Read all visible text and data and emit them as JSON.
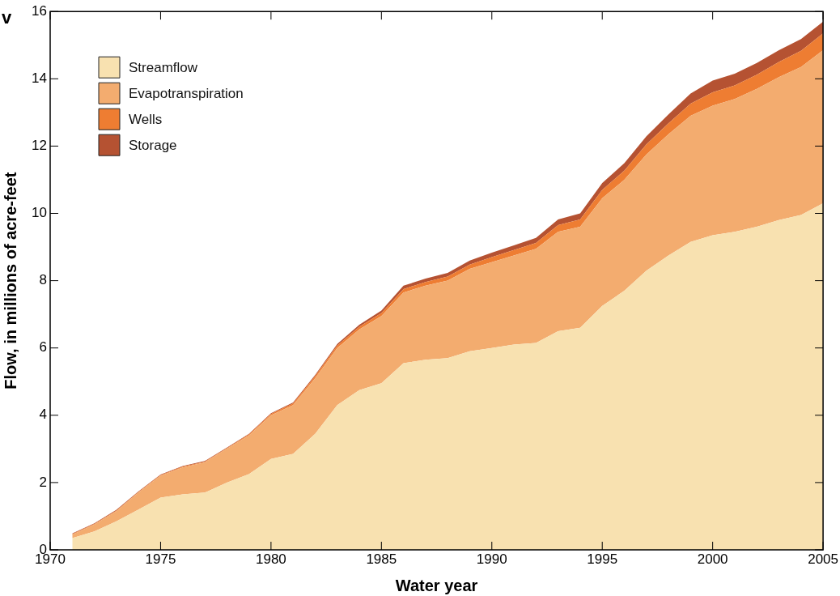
{
  "chart_data": {
    "type": "area",
    "stacked": true,
    "xlabel": "Water year",
    "ylabel": "Flow, in millions of acre-feet",
    "annotations": [
      "v"
    ],
    "x": [
      1971,
      1972,
      1973,
      1974,
      1975,
      1976,
      1977,
      1978,
      1979,
      1980,
      1981,
      1982,
      1983,
      1984,
      1985,
      1986,
      1987,
      1988,
      1989,
      1990,
      1991,
      1992,
      1993,
      1994,
      1995,
      1996,
      1997,
      1998,
      1999,
      2000,
      2001,
      2002,
      2003,
      2004,
      2005
    ],
    "xlim": [
      1970,
      2005
    ],
    "xticks": [
      1970,
      1975,
      1980,
      1985,
      1990,
      1995,
      2000,
      2005
    ],
    "ylim": [
      0,
      16
    ],
    "yticks": [
      0,
      2,
      4,
      6,
      8,
      10,
      12,
      14,
      16
    ],
    "grid": false,
    "legend": "top left",
    "series": [
      {
        "name": "Streamflow",
        "color": "#f8e1b0",
        "values": [
          0.35,
          0.55,
          0.85,
          1.2,
          1.55,
          1.65,
          1.7,
          2.0,
          2.25,
          2.7,
          2.85,
          3.45,
          4.3,
          4.75,
          4.95,
          5.55,
          5.65,
          5.7,
          5.9,
          6.0,
          6.1,
          6.15,
          6.5,
          6.6,
          7.25,
          7.7,
          8.3,
          8.75,
          9.15,
          9.35,
          9.45,
          9.6,
          9.8,
          9.95,
          10.3
        ]
      },
      {
        "name": "Evapotranspiration",
        "color": "#f3ac6f",
        "values": [
          0.1,
          0.2,
          0.3,
          0.5,
          0.65,
          0.8,
          0.9,
          1.0,
          1.15,
          1.3,
          1.45,
          1.65,
          1.7,
          1.8,
          2.0,
          2.1,
          2.2,
          2.3,
          2.45,
          2.55,
          2.65,
          2.8,
          2.95,
          3.0,
          3.2,
          3.3,
          3.45,
          3.6,
          3.75,
          3.85,
          3.95,
          4.1,
          4.25,
          4.4,
          4.55
        ]
      },
      {
        "name": "Wells",
        "color": "#ee7d32",
        "values": [
          0.02,
          0.02,
          0.02,
          0.02,
          0.02,
          0.02,
          0.02,
          0.02,
          0.03,
          0.04,
          0.05,
          0.06,
          0.07,
          0.08,
          0.09,
          0.1,
          0.11,
          0.12,
          0.13,
          0.15,
          0.16,
          0.17,
          0.2,
          0.22,
          0.25,
          0.27,
          0.3,
          0.33,
          0.36,
          0.4,
          0.4,
          0.42,
          0.45,
          0.48,
          0.5
        ]
      },
      {
        "name": "Storage",
        "color": "#b55232",
        "values": [
          0.02,
          0.02,
          0.02,
          0.02,
          0.02,
          0.02,
          0.02,
          0.02,
          0.02,
          0.02,
          0.03,
          0.04,
          0.05,
          0.06,
          0.07,
          0.1,
          0.1,
          0.11,
          0.12,
          0.13,
          0.14,
          0.15,
          0.17,
          0.18,
          0.2,
          0.22,
          0.24,
          0.26,
          0.3,
          0.35,
          0.35,
          0.35,
          0.35,
          0.35,
          0.35
        ]
      }
    ]
  }
}
